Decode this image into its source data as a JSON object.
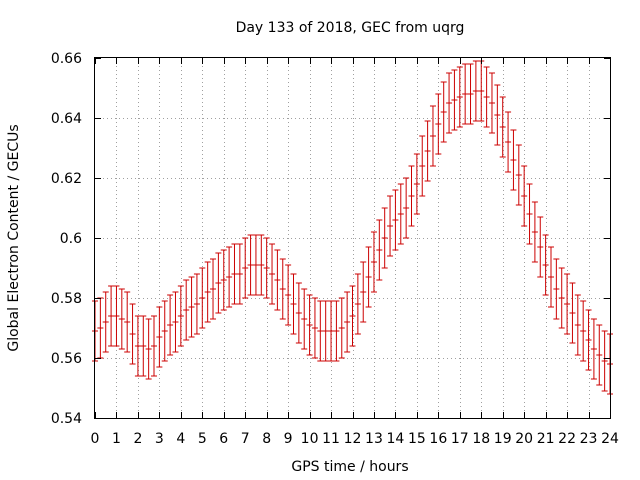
{
  "chart_data": {
    "type": "scatter",
    "title": "Day 133 of 2018, GEC from uqrg",
    "xlabel": "GPS time / hours",
    "ylabel": "Global Electron Content / GECUs",
    "xlim": [
      0,
      24
    ],
    "ylim": [
      0.54,
      0.66
    ],
    "xticks": [
      "0",
      "1",
      "2",
      "3",
      "4",
      "5",
      "6",
      "7",
      "8",
      "9",
      "10",
      "11",
      "12",
      "13",
      "14",
      "15",
      "16",
      "17",
      "18",
      "19",
      "20",
      "21",
      "22",
      "23",
      "24"
    ],
    "yticks": [
      "0.54",
      "0.56",
      "0.58",
      "0.6",
      "0.62",
      "0.64",
      "0.66"
    ],
    "grid": true,
    "series_color": "#cc0000",
    "error": 0.01,
    "x": [
      0,
      0.25,
      0.5,
      0.75,
      1,
      1.25,
      1.5,
      1.75,
      2,
      2.25,
      2.5,
      2.75,
      3,
      3.25,
      3.5,
      3.75,
      4,
      4.25,
      4.5,
      4.75,
      5,
      5.25,
      5.5,
      5.75,
      6,
      6.25,
      6.5,
      6.75,
      7,
      7.25,
      7.5,
      7.75,
      8,
      8.25,
      8.5,
      8.75,
      9,
      9.25,
      9.5,
      9.75,
      10,
      10.25,
      10.5,
      10.75,
      11,
      11.25,
      11.5,
      11.75,
      12,
      12.25,
      12.5,
      12.75,
      13,
      13.25,
      13.5,
      13.75,
      14,
      14.25,
      14.5,
      14.75,
      15,
      15.25,
      15.5,
      15.75,
      16,
      16.25,
      16.5,
      16.75,
      17,
      17.25,
      17.5,
      17.75,
      18,
      18.25,
      18.5,
      18.75,
      19,
      19.25,
      19.5,
      19.75,
      20,
      20.25,
      20.5,
      20.75,
      21,
      21.25,
      21.5,
      21.75,
      22,
      22.25,
      22.5,
      22.75,
      23,
      23.25,
      23.5,
      23.75,
      24
    ],
    "y": [
      0.569,
      0.57,
      0.572,
      0.574,
      0.574,
      0.573,
      0.572,
      0.568,
      0.564,
      0.564,
      0.563,
      0.564,
      0.567,
      0.569,
      0.571,
      0.572,
      0.574,
      0.576,
      0.577,
      0.578,
      0.58,
      0.582,
      0.583,
      0.585,
      0.586,
      0.587,
      0.588,
      0.588,
      0.59,
      0.591,
      0.591,
      0.591,
      0.59,
      0.588,
      0.586,
      0.583,
      0.581,
      0.578,
      0.575,
      0.573,
      0.571,
      0.57,
      0.569,
      0.569,
      0.569,
      0.569,
      0.57,
      0.572,
      0.574,
      0.578,
      0.582,
      0.587,
      0.592,
      0.596,
      0.6,
      0.604,
      0.606,
      0.608,
      0.61,
      0.614,
      0.618,
      0.624,
      0.629,
      0.634,
      0.638,
      0.642,
      0.645,
      0.646,
      0.647,
      0.648,
      0.648,
      0.649,
      0.649,
      0.647,
      0.645,
      0.641,
      0.637,
      0.632,
      0.626,
      0.621,
      0.614,
      0.608,
      0.602,
      0.597,
      0.591,
      0.587,
      0.583,
      0.58,
      0.578,
      0.575,
      0.571,
      0.569,
      0.566,
      0.563,
      0.561,
      0.559,
      0.558
    ]
  }
}
